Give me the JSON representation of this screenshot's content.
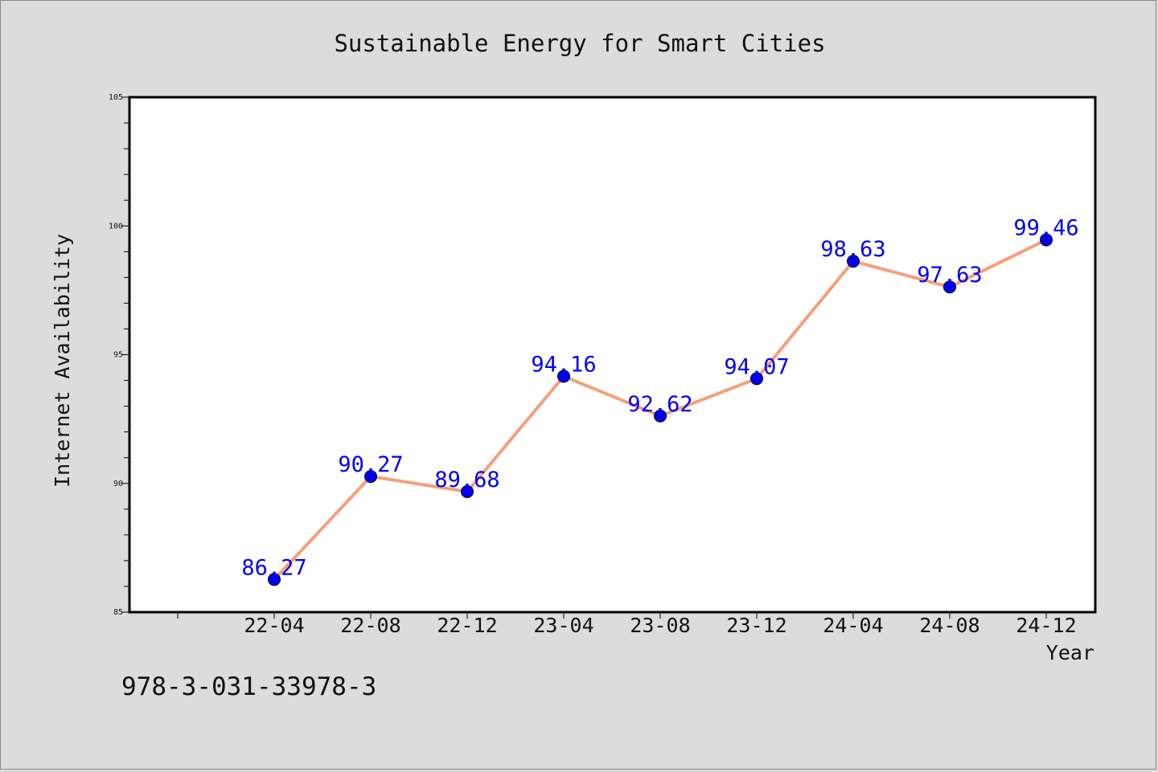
{
  "chart_data": {
    "type": "line",
    "title": "Sustainable Energy for Smart Cities",
    "xlabel": "Year",
    "ylabel": "Internet Availability",
    "categories": [
      "22-04",
      "22-08",
      "22-12",
      "23-04",
      "23-08",
      "23-12",
      "24-04",
      "24-08",
      "24-12"
    ],
    "series": [
      {
        "values": [
          86.27,
          90.27,
          89.68,
          94.16,
          92.62,
          94.07,
          98.63,
          97.63,
          99.46
        ],
        "line_color": "#f4a07a",
        "marker_color": "#0000ee"
      }
    ],
    "ylim": [
      85,
      105
    ],
    "yticks": [
      85,
      90,
      95,
      100,
      105
    ],
    "data_label_color": "#0000ee",
    "grid": false,
    "legend": "none"
  },
  "footer": {
    "code": "978-3-031-33978-3"
  }
}
